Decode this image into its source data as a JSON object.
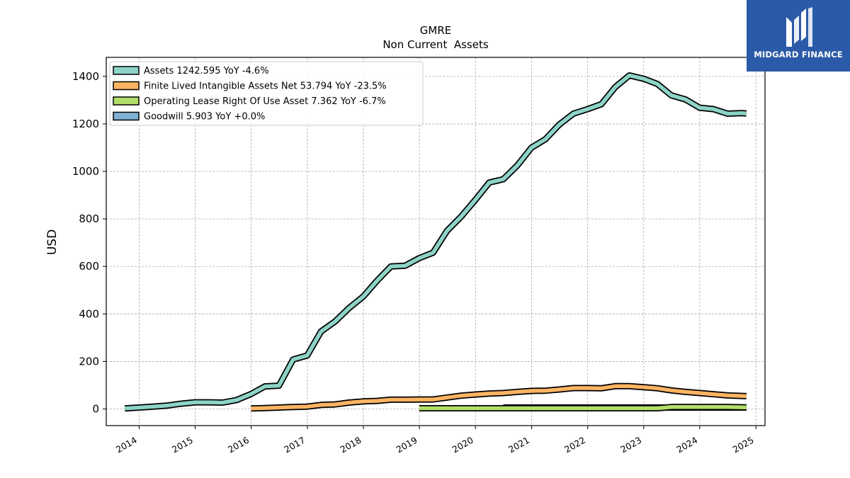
{
  "logo": {
    "text": "MIDGARD FINANCE",
    "bg_color": "#2b5aa8"
  },
  "chart_data": {
    "type": "line",
    "title": "GMRE",
    "subtitle": "Non Current  Assets",
    "ylabel": "USD",
    "xlabel": "",
    "xlim": [
      "2013-06-01",
      "2025-03-01"
    ],
    "ylim": [
      -70,
      1480
    ],
    "yticks": [
      0,
      200,
      400,
      600,
      800,
      1000,
      1200,
      1400
    ],
    "xticks": [
      "2014",
      "2015",
      "2016",
      "2017",
      "2018",
      "2019",
      "2020",
      "2021",
      "2022",
      "2023",
      "2024",
      "2025"
    ],
    "grid": true,
    "legend_position": "top-left",
    "series": [
      {
        "name": "Assets  1242.595 YoY -4.6%",
        "color": "#8dd3c7",
        "points": [
          [
            "2013-09-30",
            2
          ],
          [
            "2013-12-31",
            6
          ],
          [
            "2014-03-31",
            10
          ],
          [
            "2014-06-30",
            14
          ],
          [
            "2014-09-30",
            22
          ],
          [
            "2014-12-31",
            28
          ],
          [
            "2015-03-31",
            28
          ],
          [
            "2015-06-30",
            27
          ],
          [
            "2015-09-30",
            38
          ],
          [
            "2015-12-31",
            63
          ],
          [
            "2016-03-31",
            95
          ],
          [
            "2016-06-30",
            98
          ],
          [
            "2016-09-30",
            208
          ],
          [
            "2016-12-31",
            225
          ],
          [
            "2017-03-31",
            326
          ],
          [
            "2017-06-30",
            368
          ],
          [
            "2017-09-30",
            425
          ],
          [
            "2017-12-31",
            473
          ],
          [
            "2018-03-31",
            540
          ],
          [
            "2018-06-30",
            600
          ],
          [
            "2018-09-30",
            603
          ],
          [
            "2018-12-31",
            635
          ],
          [
            "2019-03-31",
            658
          ],
          [
            "2019-06-30",
            750
          ],
          [
            "2019-09-30",
            810
          ],
          [
            "2019-12-31",
            880
          ],
          [
            "2020-03-31",
            953
          ],
          [
            "2020-06-30",
            967
          ],
          [
            "2020-09-30",
            1025
          ],
          [
            "2020-12-31",
            1100
          ],
          [
            "2021-03-31",
            1135
          ],
          [
            "2021-06-30",
            1197
          ],
          [
            "2021-09-30",
            1243
          ],
          [
            "2021-12-31",
            1262
          ],
          [
            "2022-03-31",
            1283
          ],
          [
            "2022-06-30",
            1355
          ],
          [
            "2022-09-30",
            1404
          ],
          [
            "2022-12-31",
            1390
          ],
          [
            "2023-03-31",
            1368
          ],
          [
            "2023-06-30",
            1320
          ],
          [
            "2023-09-30",
            1303
          ],
          [
            "2023-12-31",
            1268
          ],
          [
            "2024-03-31",
            1262
          ],
          [
            "2024-06-30",
            1243
          ],
          [
            "2024-09-30",
            1245
          ],
          [
            "2024-10-31",
            1244
          ]
        ]
      },
      {
        "name": "Finite Lived Intangible Assets Net  53.794 YoY -23.5%",
        "color": "#fdb462",
        "points": [
          [
            "2015-12-31",
            2
          ],
          [
            "2016-03-31",
            4
          ],
          [
            "2016-06-30",
            6
          ],
          [
            "2016-09-30",
            8
          ],
          [
            "2016-12-31",
            10
          ],
          [
            "2017-03-31",
            17
          ],
          [
            "2017-06-30",
            19
          ],
          [
            "2017-09-30",
            27
          ],
          [
            "2017-12-31",
            32
          ],
          [
            "2018-03-31",
            34
          ],
          [
            "2018-06-30",
            39
          ],
          [
            "2018-09-30",
            39
          ],
          [
            "2018-12-31",
            40
          ],
          [
            "2019-03-31",
            40
          ],
          [
            "2019-06-30",
            48
          ],
          [
            "2019-09-30",
            56
          ],
          [
            "2019-12-31",
            61
          ],
          [
            "2020-03-31",
            65
          ],
          [
            "2020-06-30",
            67
          ],
          [
            "2020-09-30",
            72
          ],
          [
            "2020-12-31",
            76
          ],
          [
            "2021-03-31",
            77
          ],
          [
            "2021-06-30",
            82
          ],
          [
            "2021-09-30",
            88
          ],
          [
            "2021-12-31",
            88
          ],
          [
            "2022-03-31",
            87
          ],
          [
            "2022-06-30",
            96
          ],
          [
            "2022-09-30",
            96
          ],
          [
            "2022-12-31",
            92
          ],
          [
            "2023-03-31",
            87
          ],
          [
            "2023-06-30",
            78
          ],
          [
            "2023-09-30",
            72
          ],
          [
            "2023-12-31",
            67
          ],
          [
            "2024-03-31",
            62
          ],
          [
            "2024-06-30",
            57
          ],
          [
            "2024-10-31",
            54
          ]
        ]
      },
      {
        "name": "Operating Lease Right Of Use Asset  7.362 YoY -6.7%",
        "color": "#b3de69",
        "points": [
          [
            "2018-12-31",
            3
          ],
          [
            "2019-06-30",
            3
          ],
          [
            "2019-12-31",
            3
          ],
          [
            "2020-06-30",
            3
          ],
          [
            "2020-12-31",
            3
          ],
          [
            "2021-06-30",
            3
          ],
          [
            "2021-12-31",
            3
          ],
          [
            "2022-06-30",
            3
          ],
          [
            "2022-12-31",
            3
          ],
          [
            "2023-03-31",
            3
          ],
          [
            "2023-06-30",
            8
          ],
          [
            "2023-12-31",
            8
          ],
          [
            "2024-06-30",
            8
          ],
          [
            "2024-10-31",
            7
          ]
        ]
      },
      {
        "name": "Goodwill  5.903 YoY +0.0%",
        "color": "#80b1d3",
        "points": [
          [
            "2020-06-30",
            6
          ],
          [
            "2021-06-30",
            6
          ],
          [
            "2022-06-30",
            6
          ],
          [
            "2023-06-30",
            6
          ],
          [
            "2024-06-30",
            6
          ],
          [
            "2024-10-31",
            6
          ]
        ]
      }
    ]
  }
}
